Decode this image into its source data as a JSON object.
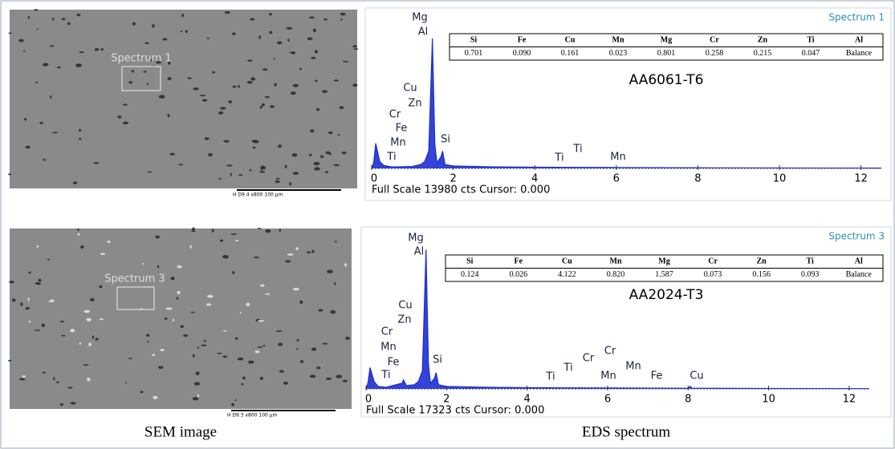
{
  "panels": [
    {
      "sem": {
        "label": "Spectrum 1",
        "scale_bar": "H   D9.4  x800      100 µm"
      },
      "spectrum": {
        "type": "line",
        "title": "Spectrum 1",
        "alloy": "AA6061-T6",
        "footer": "Full Scale 13980 cts Cursor: 0.000",
        "xlim": [
          0,
          12.5
        ],
        "xticks": [
          0,
          2,
          4,
          6,
          8,
          10,
          12
        ],
        "ylim": [
          0,
          13980
        ],
        "x": [
          0,
          0.05,
          0.1,
          0.2,
          0.3,
          0.5,
          1.0,
          1.2,
          1.3,
          1.4,
          1.49,
          1.55,
          1.6,
          1.7,
          1.74,
          1.8,
          2.0,
          3,
          4,
          5,
          6,
          8,
          10,
          12.5
        ],
        "y": [
          0,
          600,
          2600,
          700,
          300,
          150,
          200,
          400,
          700,
          1800,
          13500,
          2500,
          600,
          1200,
          1800,
          400,
          250,
          160,
          130,
          110,
          90,
          60,
          40,
          30
        ],
        "color": "#1d2fd0",
        "peak_labels": [
          "Mg",
          "Al",
          "Cu",
          "Zn",
          "Cr",
          "Fe",
          "Mn",
          "Ti",
          "Si",
          "Ti",
          "Ti",
          "Mn"
        ],
        "table": {
          "header": [
            "Si",
            "Fe",
            "Cu",
            "Mn",
            "Mg",
            "Cr",
            "Zn",
            "Ti",
            "Al"
          ],
          "row": [
            "0.701",
            "0.090",
            "0.161",
            "0.023",
            "0.801",
            "0.258",
            "0.215",
            "0.047",
            "Balance"
          ]
        }
      }
    },
    {
      "sem": {
        "label": "Spectrum 3",
        "scale_bar": "H   D9.3  x800      100 µm"
      },
      "spectrum": {
        "type": "line",
        "title": "Spectrum 3",
        "alloy": "AA2024-T3",
        "footer": "Full Scale 17323 cts Cursor: 0.000",
        "xlim": [
          0,
          12.5
        ],
        "xticks": [
          0,
          2,
          4,
          6,
          8,
          10,
          12
        ],
        "ylim": [
          0,
          17323
        ],
        "x": [
          0,
          0.05,
          0.1,
          0.2,
          0.3,
          0.5,
          0.9,
          0.93,
          1.0,
          1.2,
          1.3,
          1.4,
          1.49,
          1.55,
          1.6,
          1.7,
          1.74,
          1.8,
          2.0,
          3,
          4,
          5,
          6,
          8,
          8.05,
          8.1,
          10,
          12.5
        ],
        "y": [
          0,
          800,
          2600,
          900,
          300,
          200,
          700,
          1100,
          400,
          500,
          900,
          2200,
          17000,
          3000,
          700,
          1300,
          2000,
          500,
          300,
          200,
          150,
          130,
          110,
          80,
          300,
          80,
          50,
          30
        ],
        "color": "#1d2fd0",
        "peak_labels": [
          "Mg",
          "Al",
          "Cu",
          "Zn",
          "Cr",
          "Mn",
          "Fe",
          "Ti",
          "Si",
          "Ti",
          "Ti",
          "Cr",
          "Cr",
          "Mn",
          "Mn",
          "Fe",
          "Cu"
        ],
        "table": {
          "header": [
            "Si",
            "Fe",
            "Cu",
            "Mn",
            "Mg",
            "Cr",
            "Zn",
            "Ti",
            "Al"
          ],
          "row": [
            "0.124",
            "0.026",
            "4.122",
            "0.820",
            "1.587",
            "0.073",
            "0.156",
            "0.093",
            "Balance"
          ]
        }
      }
    }
  ],
  "captions": [
    "SEM image",
    "EDS spectrum"
  ]
}
